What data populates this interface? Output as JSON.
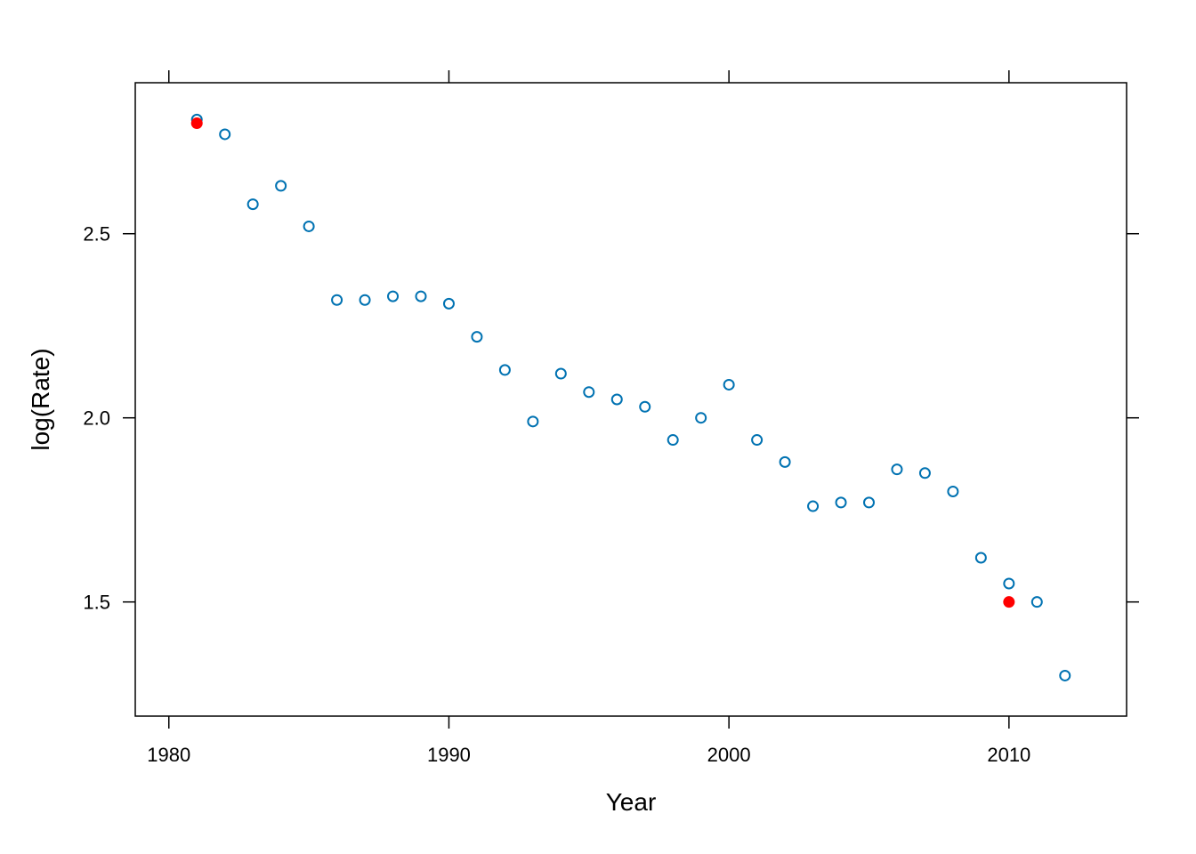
{
  "chart_data": {
    "type": "scatter",
    "title": "",
    "xlabel": "Year",
    "ylabel": "log(Rate)",
    "xlim": [
      1978.8,
      2014.2
    ],
    "ylim": [
      1.19,
      2.91
    ],
    "x_ticks": [
      1980,
      1990,
      2000,
      2010
    ],
    "x_tick_labels": [
      "1980",
      "1990",
      "2000",
      "2010"
    ],
    "y_ticks": [
      1.5,
      2.0,
      2.5
    ],
    "y_tick_labels": [
      "1.5",
      "2.0",
      "2.5"
    ],
    "grid": false,
    "colors": {
      "points": "#0072B2",
      "highlight": "#FF0000",
      "axes": "#000000"
    },
    "series": [
      {
        "marker": "open-circle",
        "x": [
          1981,
          1982,
          1983,
          1984,
          1985,
          1986,
          1987,
          1988,
          1989,
          1990,
          1991,
          1992,
          1993,
          1994,
          1995,
          1996,
          1997,
          1998,
          1999,
          2000,
          2001,
          2002,
          2003,
          2004,
          2005,
          2006,
          2007,
          2008,
          2009,
          2010,
          2011,
          2012
        ],
        "y": [
          2.81,
          2.77,
          2.58,
          2.63,
          2.52,
          2.32,
          2.32,
          2.33,
          2.33,
          2.31,
          2.22,
          2.13,
          1.99,
          2.12,
          2.07,
          2.05,
          2.03,
          1.94,
          2.0,
          2.09,
          1.94,
          1.88,
          1.76,
          1.77,
          1.77,
          1.86,
          1.85,
          1.8,
          1.62,
          1.55,
          1.5,
          1.3
        ]
      },
      {
        "marker": "filled-circle",
        "x": [
          1981,
          2010
        ],
        "y": [
          2.8,
          1.5
        ]
      }
    ]
  }
}
